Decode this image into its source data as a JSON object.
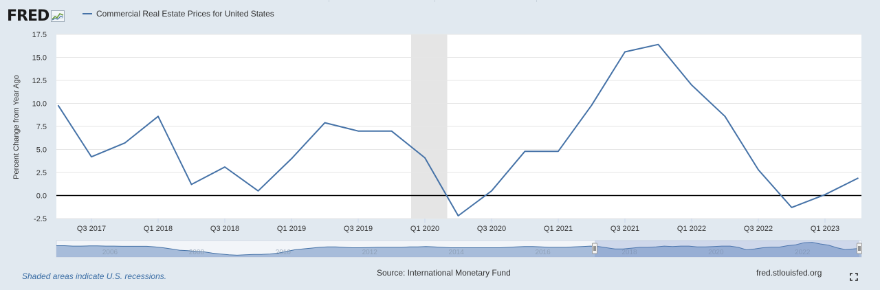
{
  "header": {
    "logo_text": "FRED",
    "legend_label": "Commercial Real Estate Prices for United States"
  },
  "colors": {
    "series": "#4572a7",
    "background": "#e1e9f0",
    "plot_bg": "#ffffff",
    "recession": "#e5e5e5",
    "zero_line": "#000000",
    "navigator_fill": "#9fb6d6"
  },
  "chart_data": {
    "type": "line",
    "title": "",
    "xlabel": "",
    "ylabel": "Percent Change from Year Ago",
    "ylim": [
      -2.5,
      17.5
    ],
    "y_ticks": [
      "17.5",
      "15.0",
      "12.5",
      "10.0",
      "7.5",
      "5.0",
      "2.5",
      "0.0",
      "-2.5"
    ],
    "x_ticks": [
      "Q3 2017",
      "Q1 2018",
      "Q3 2018",
      "Q1 2019",
      "Q3 2019",
      "Q1 2020",
      "Q3 2020",
      "Q1 2021",
      "Q3 2021",
      "Q1 2022",
      "Q3 2022",
      "Q1 2023"
    ],
    "grid": true,
    "legend": "top-left",
    "series": [
      {
        "name": "Commercial Real Estate Prices for United States",
        "x": [
          "2017-04-01",
          "2017-07-01",
          "2017-10-01",
          "2018-01-01",
          "2018-04-01",
          "2018-07-01",
          "2018-10-01",
          "2019-01-01",
          "2019-04-01",
          "2019-07-01",
          "2019-10-01",
          "2020-01-01",
          "2020-04-01",
          "2020-07-01",
          "2020-10-01",
          "2021-01-01",
          "2021-04-01",
          "2021-07-01",
          "2021-10-01",
          "2022-01-01",
          "2022-04-01",
          "2022-07-01",
          "2022-10-01",
          "2023-01-01",
          "2023-04-01"
        ],
        "values": [
          9.8,
          4.2,
          5.7,
          8.6,
          1.2,
          3.1,
          0.5,
          4.0,
          7.9,
          7.0,
          7.0,
          4.1,
          -2.2,
          0.5,
          4.8,
          4.8,
          9.8,
          15.6,
          16.4,
          12.0,
          8.6,
          2.8,
          -1.3,
          0.1,
          1.9
        ]
      }
    ],
    "recessions": [
      {
        "start": "2020-01-01",
        "end": "2020-04-01"
      }
    ],
    "navigator": {
      "ticks": [
        "2006",
        "2008",
        "2010",
        "2012",
        "2014",
        "2016",
        "2018",
        "2020",
        "2022"
      ],
      "values": [
        8,
        8,
        7,
        7,
        7.5,
        7.5,
        7,
        7,
        6.5,
        6.5,
        6.5,
        6.5,
        5,
        3,
        0,
        -3,
        -4,
        -6,
        -7,
        -10,
        -12,
        -14,
        -15,
        -14,
        -13,
        -13,
        -12,
        -10,
        -6,
        -2,
        0,
        2,
        4,
        5,
        5,
        4,
        3,
        3,
        3.5,
        4,
        4,
        4,
        4,
        5,
        5,
        6,
        5,
        4,
        3,
        3,
        3,
        3,
        3,
        3,
        3,
        4,
        5,
        6,
        6,
        5,
        4,
        4,
        4,
        5,
        6,
        7,
        6,
        3,
        0,
        0,
        2,
        4,
        4,
        5,
        7,
        6,
        7,
        7,
        5,
        5,
        6,
        7,
        7,
        4,
        -2,
        0,
        3,
        4.5,
        4.5,
        8,
        10,
        15,
        16,
        12,
        9,
        3,
        -1.3,
        0,
        1.9
      ]
    }
  },
  "footer": {
    "recession_note": "Shaded areas indicate U.S. recessions.",
    "source": "Source: International Monetary Fund",
    "site": "fred.stlouisfed.org"
  }
}
